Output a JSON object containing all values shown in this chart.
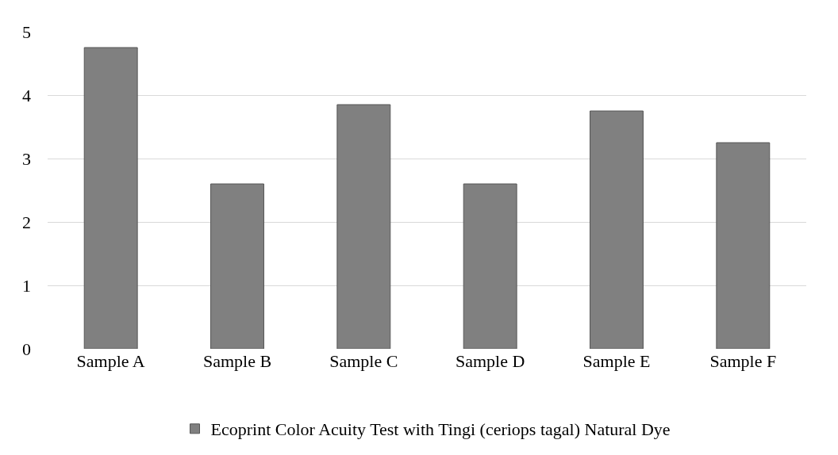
{
  "chart_data": {
    "type": "bar",
    "categories": [
      "Sample A",
      "Sample B",
      "Sample C",
      "Sample D",
      "Sample E",
      "Sample F"
    ],
    "series": [
      {
        "name": "Ecoprint Color Acuity Test with Tingi (ceriops tagal) Natural Dye",
        "color": "#808080",
        "values": [
          4.75,
          2.6,
          3.85,
          2.6,
          3.75,
          3.25
        ]
      }
    ],
    "ylim": [
      0,
      5
    ],
    "yticks": [
      0,
      1,
      2,
      3,
      4,
      5
    ],
    "grid": "y",
    "legend": "bottom"
  }
}
